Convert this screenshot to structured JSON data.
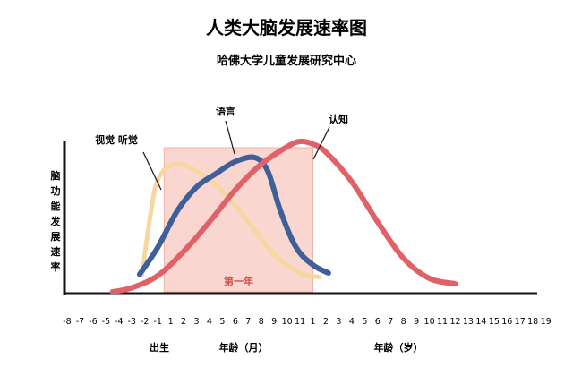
{
  "chart_data": {
    "type": "line",
    "title": "人类大脑发展速率图",
    "subtitle": "哈佛大学儿童发展研究中心",
    "ylabel": "脑功能发展速率",
    "xlabel_segments": {
      "birth": "出生",
      "months": "年龄（月）",
      "years": "年龄（岁）"
    },
    "x_ticks": [
      "-8",
      "-7",
      "-6",
      "-5",
      "-4",
      "-3",
      "-2",
      "-1",
      "1",
      "2",
      "3",
      "4",
      "5",
      "6",
      "7",
      "8",
      "9",
      "10",
      "11",
      "1",
      "2",
      "3",
      "4",
      "5",
      "6",
      "7",
      "8",
      "9",
      "10",
      "11",
      "12",
      "13",
      "14",
      "15",
      "16",
      "17",
      "18",
      "19"
    ],
    "x_index_note_values": "x values are tick index positions (0 = '-8', 8 = '1' month, 19 = '1' year)",
    "highlight": {
      "label": "第一年",
      "from": 7.5,
      "to": 19,
      "color": "#f9d6cf"
    },
    "series": [
      {
        "name": "视觉 听觉",
        "color": "#f7d7a0",
        "points": [
          [
            5.8,
            0.13
          ],
          [
            6.4,
            0.55
          ],
          [
            7.0,
            0.83
          ],
          [
            8.2,
            0.95
          ],
          [
            10,
            0.9
          ],
          [
            12,
            0.75
          ],
          [
            14,
            0.52
          ],
          [
            16,
            0.28
          ],
          [
            18,
            0.14
          ],
          [
            19.5,
            0.11
          ]
        ]
      },
      {
        "name": "语言",
        "color": "#3f5f99",
        "points": [
          [
            5.6,
            0.13
          ],
          [
            7.0,
            0.33
          ],
          [
            8.5,
            0.6
          ],
          [
            10,
            0.78
          ],
          [
            11.5,
            0.88
          ],
          [
            13,
            0.97
          ],
          [
            14.5,
            1.0
          ],
          [
            15.5,
            0.9
          ],
          [
            16.5,
            0.6
          ],
          [
            17.7,
            0.33
          ],
          [
            19,
            0.2
          ],
          [
            20.2,
            0.14
          ]
        ]
      },
      {
        "name": "认知",
        "color": "#e06268",
        "points": [
          [
            3.5,
            0.0
          ],
          [
            5,
            0.03
          ],
          [
            7,
            0.12
          ],
          [
            9,
            0.3
          ],
          [
            11,
            0.52
          ],
          [
            13,
            0.76
          ],
          [
            15,
            0.95
          ],
          [
            17,
            1.08
          ],
          [
            18,
            1.12
          ],
          [
            19,
            1.1
          ],
          [
            20,
            1.04
          ],
          [
            22,
            0.82
          ],
          [
            24,
            0.52
          ],
          [
            26,
            0.25
          ],
          [
            28,
            0.1
          ],
          [
            30,
            0.06
          ]
        ]
      }
    ],
    "grid": false,
    "legend": "inline-labels"
  }
}
